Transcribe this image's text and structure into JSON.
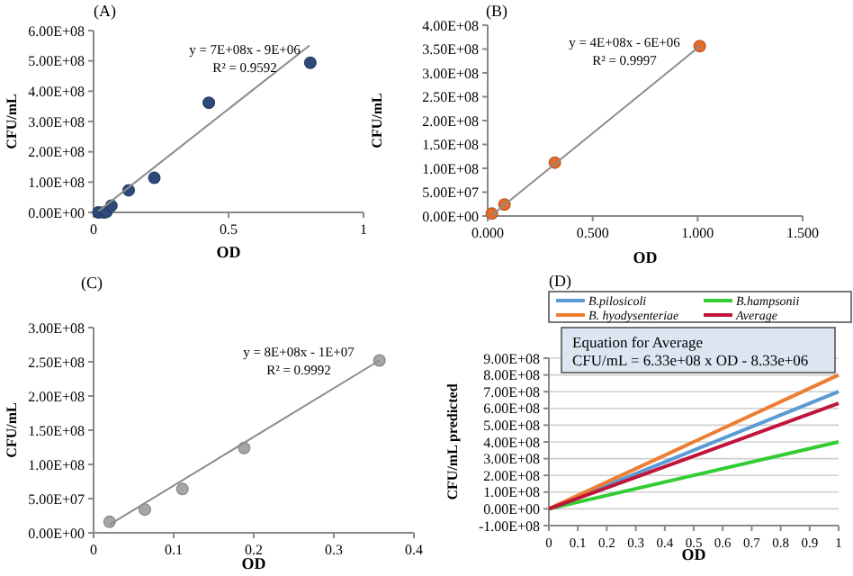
{
  "chart_data": [
    {
      "type": "scatter",
      "title": "(A)",
      "xlabel": "OD",
      "ylabel": "CFU/mL",
      "xlim": [
        0,
        1
      ],
      "xticks": [
        0,
        0.5,
        1
      ],
      "ylim": [
        0,
        600000000
      ],
      "yticks": [
        {
          "value": 0,
          "label": "0.00E+00"
        },
        {
          "value": 100000000,
          "label": "1.00E+08"
        },
        {
          "value": 200000000,
          "label": "2.00E+08"
        },
        {
          "value": 300000000,
          "label": "3.00E+08"
        },
        {
          "value": 400000000,
          "label": "4.00E+08"
        },
        {
          "value": 500000000,
          "label": "5.00E+08"
        },
        {
          "value": 600000000,
          "label": "6.00E+08"
        }
      ],
      "grid": false,
      "legend": false,
      "annotations": [
        "y = 7E+08x - 9E+06",
        "R² = 0.9592"
      ],
      "series": [
        {
          "marker": "circle",
          "color": "#2e4a7a",
          "x": [
            0.018,
            0.039,
            0.048,
            0.066,
            0.13,
            0.225,
            0.427,
            0.803
          ],
          "values": [
            0,
            0,
            2000000,
            22000000,
            73000000,
            114000000,
            362000000,
            494000000
          ]
        },
        {
          "type": "line",
          "color": "#8c8c8c",
          "x": [
            0.018,
            0.8
          ],
          "values": [
            4000000,
            551000000
          ]
        }
      ]
    },
    {
      "type": "scatter",
      "title": "(B)",
      "xlabel": "OD",
      "ylabel": "CFU/mL",
      "xlim": [
        0,
        1.5
      ],
      "xticks": [
        {
          "value": 0,
          "label": "0.000"
        },
        {
          "value": 0.5,
          "label": "0.500"
        },
        {
          "value": 1,
          "label": "1.000"
        },
        {
          "value": 1.5,
          "label": "1.500"
        }
      ],
      "ylim": [
        0,
        400000000
      ],
      "yticks": [
        {
          "value": 0,
          "label": "0.00E+00"
        },
        {
          "value": 50000000,
          "label": "5.00E+07"
        },
        {
          "value": 100000000,
          "label": "1.00E+08"
        },
        {
          "value": 150000000,
          "label": "1.50E+08"
        },
        {
          "value": 200000000,
          "label": "2.00E+08"
        },
        {
          "value": 250000000,
          "label": "2.50E+08"
        },
        {
          "value": 300000000,
          "label": "3.00E+08"
        },
        {
          "value": 350000000,
          "label": "3.50E+08"
        },
        {
          "value": 400000000,
          "label": "4.00E+08"
        }
      ],
      "grid": false,
      "legend": false,
      "annotations": [
        "y = 4E+08x - 6E+06",
        "R² = 0.9997"
      ],
      "series": [
        {
          "marker": "circle",
          "color": "#e46c2a",
          "x": [
            0.02,
            0.08,
            0.32,
            1.01
          ],
          "values": [
            5000000,
            24000000,
            112000000,
            356000000
          ]
        },
        {
          "type": "line",
          "color": "#8c8c8c",
          "x": [
            0.02,
            1.01
          ],
          "values": [
            2000000,
            356000000
          ]
        }
      ]
    },
    {
      "type": "scatter",
      "title": "(C)",
      "xlabel": "OD",
      "ylabel": "CFU/mL",
      "xlim": [
        0,
        0.4
      ],
      "xticks": [
        0,
        0.1,
        0.2,
        0.3,
        0.4
      ],
      "ylim": [
        0,
        300000000
      ],
      "yticks": [
        {
          "value": 0,
          "label": "0.00E+00"
        },
        {
          "value": 50000000,
          "label": "5.00E+07"
        },
        {
          "value": 100000000,
          "label": "1.00E+08"
        },
        {
          "value": 150000000,
          "label": "1.50E+08"
        },
        {
          "value": 200000000,
          "label": "2.00E+08"
        },
        {
          "value": 250000000,
          "label": "2.50E+08"
        },
        {
          "value": 300000000,
          "label": "3.00E+08"
        }
      ],
      "grid": false,
      "legend": false,
      "annotations": [
        "y = 8E+08x - 1E+07",
        "R² = 0.9992"
      ],
      "series": [
        {
          "marker": "circle",
          "color": "#a6a6a6",
          "x": [
            0.02,
            0.064,
            0.111,
            0.188,
            0.357
          ],
          "values": [
            16000000,
            34000000,
            64000000,
            124000000,
            252000000
          ]
        },
        {
          "type": "line",
          "color": "#8c8c8c",
          "x": [
            0.02,
            0.357
          ],
          "values": [
            12000000,
            252000000
          ]
        }
      ]
    },
    {
      "type": "line",
      "title": "(D)",
      "xlabel": "OD",
      "ylabel": "CFU/mL predicted",
      "xlim": [
        0,
        1
      ],
      "xticks": [
        0,
        0.1,
        0.2,
        0.3,
        0.4,
        0.5,
        0.6,
        0.7,
        0.8,
        0.9,
        1
      ],
      "ylim": [
        -100000000,
        900000000
      ],
      "yticks": [
        {
          "value": -100000000,
          "label": "-1.00E+08"
        },
        {
          "value": 0,
          "label": "0.00E+00"
        },
        {
          "value": 100000000,
          "label": "1.00E+08"
        },
        {
          "value": 200000000,
          "label": "2.00E+08"
        },
        {
          "value": 300000000,
          "label": "3.00E+08"
        },
        {
          "value": 400000000,
          "label": "4.00E+08"
        },
        {
          "value": 500000000,
          "label": "5.00E+08"
        },
        {
          "value": 600000000,
          "label": "6.00E+08"
        },
        {
          "value": 700000000,
          "label": "7.00E+08"
        },
        {
          "value": 800000000,
          "label": "8.00E+08"
        },
        {
          "value": 900000000,
          "label": "9.00E+08"
        }
      ],
      "grid": "y",
      "legend": "top",
      "line_style": "solid",
      "annotations": [
        "Equation for Average",
        "CFU/mL = 6.33e+08 x OD - 8.33e+06"
      ],
      "series": [
        {
          "name": "B.pilosicoli",
          "color": "#5b9bd5",
          "x": [
            0,
            1
          ],
          "values": [
            0,
            700000000
          ]
        },
        {
          "name": "B.hampsonii",
          "color": "#33cc33",
          "x": [
            0,
            1
          ],
          "values": [
            0,
            400000000
          ]
        },
        {
          "name": "B. hyodysenteriae",
          "color": "#ed7d31",
          "x": [
            0,
            1
          ],
          "values": [
            0,
            800000000
          ]
        },
        {
          "name": "Average",
          "color": "#c0143c",
          "x": [
            0,
            1
          ],
          "values": [
            0,
            630000000
          ]
        }
      ]
    }
  ]
}
